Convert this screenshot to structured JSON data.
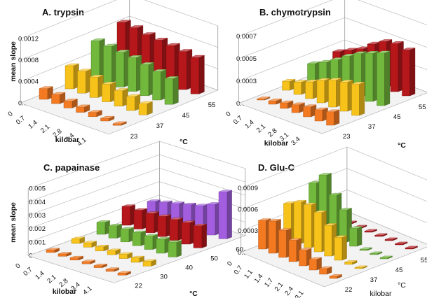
{
  "chart_data": [
    {
      "type": "bar3d",
      "title": "A.  trypsin",
      "ylabel": "mean slope",
      "xlabel": "kilobar",
      "zlabel": "°C",
      "yticks": [
        "0.0000",
        "0.0004",
        "0.0008",
        "0.0012"
      ],
      "ylim": [
        0,
        0.0012
      ],
      "pressures": [
        "0",
        "0.7",
        "1.4",
        "2.1",
        "2.8",
        "3.4",
        "4.1"
      ],
      "temperatures": [
        "23",
        "37",
        "45",
        "55"
      ],
      "colors": [
        "#f47a22",
        "#f7c21a",
        "#72b83c",
        "#b5171b"
      ],
      "series": [
        {
          "temp": "23",
          "values": [
            0.0002,
            0.00017,
            0.00013,
            0.0001,
            8e-05,
            5e-05,
            3e-05
          ]
        },
        {
          "temp": "37",
          "values": [
            0.00043,
            0.00041,
            0.00038,
            0.00033,
            0.00029,
            0.00026,
            0.00021
          ]
        },
        {
          "temp": "45",
          "values": [
            0.0007,
            0.00068,
            0.00065,
            0.00063,
            0.00058,
            0.00053,
            0.00048
          ]
        },
        {
          "temp": "55",
          "values": [
            0.00085,
            0.00083,
            0.00078,
            0.00076,
            0.00074,
            0.00071,
            0.00068
          ]
        }
      ]
    },
    {
      "type": "bar3d",
      "title": "B.  chymotrypsin",
      "ylabel": "",
      "xlabel": "kilobar",
      "zlabel": "°C",
      "yticks": [
        "0.0001",
        "0.0003",
        "0.0005",
        "0.0007"
      ],
      "ylim": [
        0.0001,
        0.0007
      ],
      "pressures": [
        "0",
        "0.7",
        "1.4",
        "2.1",
        "2.8",
        "3.1",
        "3.4"
      ],
      "temperatures": [
        "23",
        "37",
        "45",
        "55"
      ],
      "colors": [
        "#f47a22",
        "#f7c21a",
        "#72b83c",
        "#b5171b"
      ],
      "series": [
        {
          "temp": "23",
          "values": [
            0.00011,
            0.00013,
            0.00015,
            0.00017,
            0.00019,
            0.0002,
            0.00022
          ]
        },
        {
          "temp": "37",
          "values": [
            0.00018,
            0.00021,
            0.00025,
            0.0003,
            0.00034,
            0.00036,
            0.00038
          ]
        },
        {
          "temp": "45",
          "values": [
            0.00025,
            0.0003,
            0.00036,
            0.00043,
            0.00049,
            0.00053,
            0.00057
          ]
        },
        {
          "temp": "55",
          "values": [
            0.00027,
            0.00032,
            0.00037,
            0.00045,
            0.00051,
            0.00053,
            0.00051
          ]
        }
      ]
    },
    {
      "type": "bar3d",
      "title": "C.  papainase",
      "ylabel": "mean slope",
      "xlabel": "kilobar",
      "zlabel": "°C",
      "yticks": [
        "0.000",
        "0.001",
        "0.002",
        "0.003",
        "0.004",
        "0.005"
      ],
      "ylim": [
        0,
        0.005
      ],
      "pressures": [
        "0",
        "0.7",
        "1.4",
        "2.1",
        "2.8",
        "3.4",
        "4.1"
      ],
      "temperatures": [
        "22",
        "30",
        "40",
        "50",
        "60"
      ],
      "colors": [
        "#f47a22",
        "#f7c21a",
        "#72b83c",
        "#b5171b",
        "#a35ee0"
      ],
      "series": [
        {
          "temp": "22",
          "values": [
            0.0002,
            0.00018,
            0.00017,
            0.00016,
            0.00015,
            0.00015,
            0.00016
          ]
        },
        {
          "temp": "30",
          "values": [
            0.00035,
            0.00033,
            0.00032,
            0.00031,
            0.00032,
            0.00034,
            0.00036
          ]
        },
        {
          "temp": "40",
          "values": [
            0.0009,
            0.00092,
            0.00095,
            0.00098,
            0.001,
            0.00105,
            0.0011
          ]
        },
        {
          "temp": "50",
          "values": [
            0.0014,
            0.0014,
            0.00145,
            0.0015,
            0.00155,
            0.0016,
            0.00165
          ]
        },
        {
          "temp": "60",
          "values": [
            0.0011,
            0.0013,
            0.0015,
            0.0017,
            0.0019,
            0.0023,
            0.0035
          ]
        }
      ]
    },
    {
      "type": "bar3d",
      "title": "D.  Glu-C",
      "ylabel": "",
      "xlabel": "kilobar",
      "zlabel": "°C",
      "yticks": [
        "0.0000",
        "0.0003",
        "0.0006",
        "0.0009"
      ],
      "ylim": [
        0,
        0.0009
      ],
      "pressures": [
        "0",
        "0.7",
        "1.1",
        "1.4",
        "1.7",
        "2.1",
        "2.4",
        "3.1"
      ],
      "temperatures": [
        "22",
        "37",
        "45",
        "55"
      ],
      "colors": [
        "#f47a22",
        "#f7c21a",
        "#72b83c",
        "#b5171b"
      ],
      "series": [
        {
          "temp": "22",
          "values": [
            0.0004,
            0.00045,
            0.00038,
            0.0003,
            0.00022,
            0.00015,
            8e-05,
            3e-05
          ]
        },
        {
          "temp": "37",
          "values": [
            0.0005,
            0.00058,
            0.0006,
            0.00055,
            0.00043,
            0.00032,
            3e-05,
            1.5e-05
          ]
        },
        {
          "temp": "45",
          "values": [
            0.00065,
            0.00082,
            0.0006,
            0.00045,
            0.00025,
            1.5e-05,
            1.5e-05,
            1.5e-05
          ]
        },
        {
          "temp": "55",
          "values": [
            1.5e-05,
            1.5e-05,
            1.5e-05,
            1.5e-05,
            1.5e-05,
            1.5e-05,
            1.5e-05,
            1.5e-05
          ]
        }
      ]
    }
  ]
}
